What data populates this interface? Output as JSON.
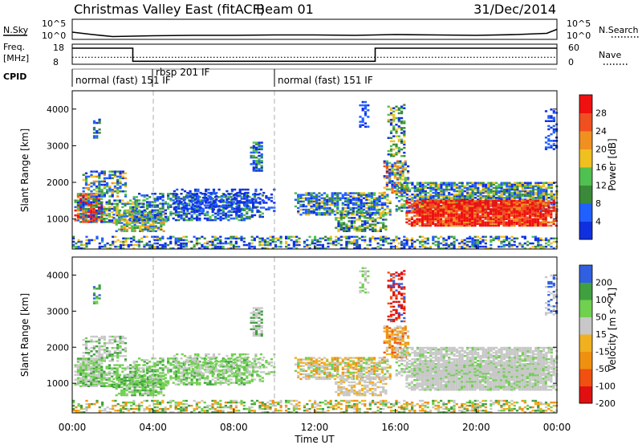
{
  "header": {
    "title": "Christmas Valley East (fitACF)",
    "beam": "Beam 01",
    "date": "31/Dec/2014"
  },
  "colors": {
    "power": [
      "#1030e0",
      "#2060ff",
      "#3a8a3a",
      "#50c050",
      "#f0c020",
      "#f09020",
      "#f05020",
      "#f01010"
    ],
    "velocity": [
      "#e01010",
      "#f05010",
      "#f09010",
      "#f0b020",
      "#c8c8c8",
      "#70d050",
      "#40a040",
      "#3060e0"
    ]
  },
  "chart_data": [
    {
      "type": "line",
      "name": "noise-panel",
      "left_label": "N.Sky",
      "right_label": "N.Search",
      "left_ticks": [
        "10^5",
        "10^0"
      ],
      "right_ticks": [
        "10^5",
        "10^0"
      ],
      "x": [
        0,
        1,
        2,
        4,
        6,
        8,
        10,
        12,
        14,
        16,
        18,
        20,
        22,
        23.5,
        24
      ],
      "values": [
        1.8,
        1.2,
        0.7,
        0.9,
        1.0,
        1.0,
        1.1,
        1.1,
        1.0,
        1.2,
        1.1,
        1.0,
        1.2,
        1.5,
        2.5
      ],
      "ylim": [
        0,
        5
      ]
    },
    {
      "type": "line",
      "name": "frequency-panel",
      "left_label": "Freq. [MHz]",
      "right_label": "Nave",
      "left_ticks": [
        "18",
        "8"
      ],
      "right_ticks": [
        "60",
        "0"
      ],
      "series": [
        {
          "x": [
            0,
            3,
            3,
            15,
            15,
            24
          ],
          "values": [
            16,
            16,
            9.5,
            9.5,
            16,
            16
          ]
        },
        {
          "x": [
            0,
            24
          ],
          "values": [
            11.5,
            11.5
          ]
        }
      ],
      "ylim": [
        8,
        18
      ]
    },
    {
      "type": "table",
      "name": "cpid",
      "label": "CPID",
      "segments": [
        {
          "start": 0,
          "end": 4,
          "text": "normal (fast) 151 IF"
        },
        {
          "start": 4,
          "end": 10,
          "text": "rbsp 201 IF"
        },
        {
          "start": 10,
          "end": 24,
          "text": "normal (fast) 151 IF"
        }
      ]
    },
    {
      "type": "heatmap",
      "name": "power-panel",
      "ylabel": "Slant Range [km]",
      "yticks": [
        1000,
        2000,
        3000,
        4000
      ],
      "ylim": [
        180,
        4500
      ],
      "colorbar_label": "Power [dB]",
      "colorbar_ticks": [
        "28",
        "24",
        "20",
        "16",
        "12",
        "8",
        "4"
      ]
    },
    {
      "type": "heatmap",
      "name": "velocity-panel",
      "ylabel": "Slant Range [km]",
      "yticks": [
        1000,
        2000,
        3000,
        4000
      ],
      "ylim": [
        180,
        4500
      ],
      "colorbar_label": "Velocity [m s^-1]",
      "colorbar_ticks": [
        "200",
        "100",
        "50",
        "15",
        "-15",
        "-50",
        "-100",
        "-200"
      ]
    }
  ],
  "xaxis": {
    "label": "Time UT",
    "ticks": [
      "00:00",
      "04:00",
      "08:00",
      "12:00",
      "16:00",
      "20:00",
      "00:00"
    ],
    "range": [
      0,
      24
    ]
  }
}
